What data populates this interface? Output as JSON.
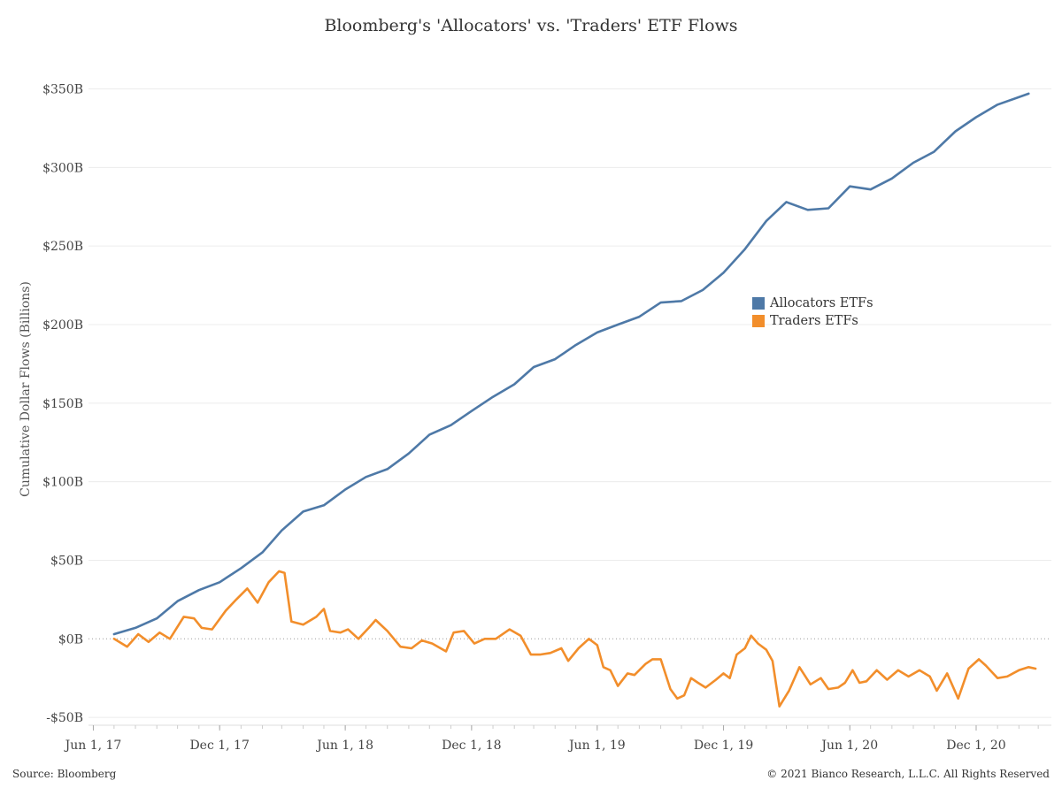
{
  "chart_data": {
    "type": "line",
    "title": "Bloomberg's 'Allocators' vs. 'Traders' ETF Flows",
    "ylabel": "Cumulative Dollar Flows (Billions)",
    "xlabel": "",
    "ylim": [
      -55,
      370
    ],
    "xlim": [
      "2017-05-25",
      "2021-03-20"
    ],
    "y_ticks": [
      {
        "value": 350,
        "label": "$350B"
      },
      {
        "value": 300,
        "label": "$300B"
      },
      {
        "value": 250,
        "label": "$250B"
      },
      {
        "value": 200,
        "label": "$200B"
      },
      {
        "value": 150,
        "label": "$150B"
      },
      {
        "value": 100,
        "label": "$100B"
      },
      {
        "value": 50,
        "label": "$50B"
      },
      {
        "value": 0,
        "label": "$0B"
      },
      {
        "value": -50,
        "label": "-$50B"
      }
    ],
    "x_ticks": [
      {
        "value": "2017-06-01",
        "label": "Jun 1, 17"
      },
      {
        "value": "2017-12-01",
        "label": "Dec 1, 17"
      },
      {
        "value": "2018-06-01",
        "label": "Jun 1, 18"
      },
      {
        "value": "2018-12-01",
        "label": "Dec 1, 18"
      },
      {
        "value": "2019-06-01",
        "label": "Jun 1, 19"
      },
      {
        "value": "2019-12-01",
        "label": "Dec 1, 19"
      },
      {
        "value": "2020-06-01",
        "label": "Jun 1, 20"
      },
      {
        "value": "2020-12-01",
        "label": "Dec 1, 20"
      }
    ],
    "grid": true,
    "legend_position": "right-middle",
    "series": [
      {
        "name": "Allocators ETFs",
        "color": "#4e79a7",
        "points": [
          [
            "2017-07-01",
            3
          ],
          [
            "2017-08-01",
            7
          ],
          [
            "2017-09-01",
            13
          ],
          [
            "2017-10-01",
            24
          ],
          [
            "2017-11-01",
            31
          ],
          [
            "2017-12-01",
            36
          ],
          [
            "2018-01-01",
            45
          ],
          [
            "2018-02-01",
            55
          ],
          [
            "2018-03-01",
            69
          ],
          [
            "2018-04-01",
            81
          ],
          [
            "2018-05-01",
            85
          ],
          [
            "2018-06-01",
            95
          ],
          [
            "2018-07-01",
            103
          ],
          [
            "2018-08-01",
            108
          ],
          [
            "2018-09-01",
            118
          ],
          [
            "2018-10-01",
            130
          ],
          [
            "2018-11-01",
            136
          ],
          [
            "2018-12-01",
            145
          ],
          [
            "2019-01-01",
            154
          ],
          [
            "2019-02-01",
            162
          ],
          [
            "2019-03-01",
            173
          ],
          [
            "2019-04-01",
            178
          ],
          [
            "2019-05-01",
            187
          ],
          [
            "2019-06-01",
            195
          ],
          [
            "2019-07-01",
            200
          ],
          [
            "2019-08-01",
            205
          ],
          [
            "2019-09-01",
            214
          ],
          [
            "2019-10-01",
            215
          ],
          [
            "2019-11-01",
            222
          ],
          [
            "2019-12-01",
            233
          ],
          [
            "2020-01-01",
            248
          ],
          [
            "2020-02-01",
            266
          ],
          [
            "2020-03-01",
            278
          ],
          [
            "2020-04-01",
            273
          ],
          [
            "2020-05-01",
            274
          ],
          [
            "2020-06-01",
            288
          ],
          [
            "2020-07-01",
            286
          ],
          [
            "2020-08-01",
            293
          ],
          [
            "2020-09-01",
            303
          ],
          [
            "2020-10-01",
            310
          ],
          [
            "2020-11-01",
            323
          ],
          [
            "2020-12-01",
            332
          ],
          [
            "2021-01-01",
            340
          ],
          [
            "2021-02-15",
            347
          ]
        ]
      },
      {
        "name": "Traders ETFs",
        "color": "#f28e2b",
        "points": [
          [
            "2017-07-01",
            0
          ],
          [
            "2017-07-20",
            -5
          ],
          [
            "2017-08-05",
            3
          ],
          [
            "2017-08-20",
            -2
          ],
          [
            "2017-09-05",
            4
          ],
          [
            "2017-09-20",
            0
          ],
          [
            "2017-10-10",
            14
          ],
          [
            "2017-10-25",
            13
          ],
          [
            "2017-11-05",
            7
          ],
          [
            "2017-11-20",
            6
          ],
          [
            "2017-12-10",
            18
          ],
          [
            "2017-12-25",
            25
          ],
          [
            "2018-01-10",
            32
          ],
          [
            "2018-01-25",
            23
          ],
          [
            "2018-02-10",
            36
          ],
          [
            "2018-02-25",
            43
          ],
          [
            "2018-03-05",
            42
          ],
          [
            "2018-03-15",
            11
          ],
          [
            "2018-04-01",
            9
          ],
          [
            "2018-04-20",
            14
          ],
          [
            "2018-05-01",
            19
          ],
          [
            "2018-05-10",
            5
          ],
          [
            "2018-05-25",
            4
          ],
          [
            "2018-06-05",
            6
          ],
          [
            "2018-06-20",
            0
          ],
          [
            "2018-07-05",
            7
          ],
          [
            "2018-07-15",
            12
          ],
          [
            "2018-08-01",
            5
          ],
          [
            "2018-08-20",
            -5
          ],
          [
            "2018-09-05",
            -6
          ],
          [
            "2018-09-20",
            -1
          ],
          [
            "2018-10-05",
            -3
          ],
          [
            "2018-10-25",
            -8
          ],
          [
            "2018-11-05",
            4
          ],
          [
            "2018-11-20",
            5
          ],
          [
            "2018-12-05",
            -3
          ],
          [
            "2018-12-20",
            0
          ],
          [
            "2019-01-05",
            0
          ],
          [
            "2019-01-25",
            6
          ],
          [
            "2019-02-10",
            2
          ],
          [
            "2019-02-25",
            -10
          ],
          [
            "2019-03-10",
            -10
          ],
          [
            "2019-03-25",
            -9
          ],
          [
            "2019-04-10",
            -6
          ],
          [
            "2019-04-20",
            -14
          ],
          [
            "2019-05-05",
            -6
          ],
          [
            "2019-05-20",
            0
          ],
          [
            "2019-06-01",
            -4
          ],
          [
            "2019-06-10",
            -18
          ],
          [
            "2019-06-20",
            -20
          ],
          [
            "2019-07-01",
            -30
          ],
          [
            "2019-07-15",
            -22
          ],
          [
            "2019-07-25",
            -23
          ],
          [
            "2019-08-10",
            -16
          ],
          [
            "2019-08-20",
            -13
          ],
          [
            "2019-09-01",
            -13
          ],
          [
            "2019-09-15",
            -32
          ],
          [
            "2019-09-25",
            -38
          ],
          [
            "2019-10-05",
            -36
          ],
          [
            "2019-10-15",
            -25
          ],
          [
            "2019-10-25",
            -28
          ],
          [
            "2019-11-05",
            -31
          ],
          [
            "2019-11-20",
            -26
          ],
          [
            "2019-12-01",
            -22
          ],
          [
            "2019-12-10",
            -25
          ],
          [
            "2019-12-20",
            -10
          ],
          [
            "2020-01-01",
            -6
          ],
          [
            "2020-01-10",
            2
          ],
          [
            "2020-01-20",
            -3
          ],
          [
            "2020-02-01",
            -7
          ],
          [
            "2020-02-10",
            -14
          ],
          [
            "2020-02-20",
            -43
          ],
          [
            "2020-03-05",
            -33
          ],
          [
            "2020-03-20",
            -18
          ],
          [
            "2020-04-05",
            -29
          ],
          [
            "2020-04-20",
            -25
          ],
          [
            "2020-05-01",
            -32
          ],
          [
            "2020-05-15",
            -31
          ],
          [
            "2020-05-25",
            -28
          ],
          [
            "2020-06-05",
            -20
          ],
          [
            "2020-06-15",
            -28
          ],
          [
            "2020-06-25",
            -27
          ],
          [
            "2020-07-10",
            -20
          ],
          [
            "2020-07-25",
            -26
          ],
          [
            "2020-08-10",
            -20
          ],
          [
            "2020-08-25",
            -24
          ],
          [
            "2020-09-10",
            -20
          ],
          [
            "2020-09-25",
            -24
          ],
          [
            "2020-10-05",
            -33
          ],
          [
            "2020-10-20",
            -22
          ],
          [
            "2020-11-05",
            -38
          ],
          [
            "2020-11-20",
            -19
          ],
          [
            "2020-12-05",
            -13
          ],
          [
            "2020-12-15",
            -17
          ],
          [
            "2021-01-01",
            -25
          ],
          [
            "2021-01-15",
            -24
          ],
          [
            "2021-02-01",
            -20
          ],
          [
            "2021-02-15",
            -18
          ],
          [
            "2021-02-25",
            -19
          ]
        ]
      }
    ]
  },
  "footer": {
    "source": "Source: Bloomberg",
    "copyright": "© 2021 Bianco Research, L.L.C. All Rights Reserved"
  }
}
